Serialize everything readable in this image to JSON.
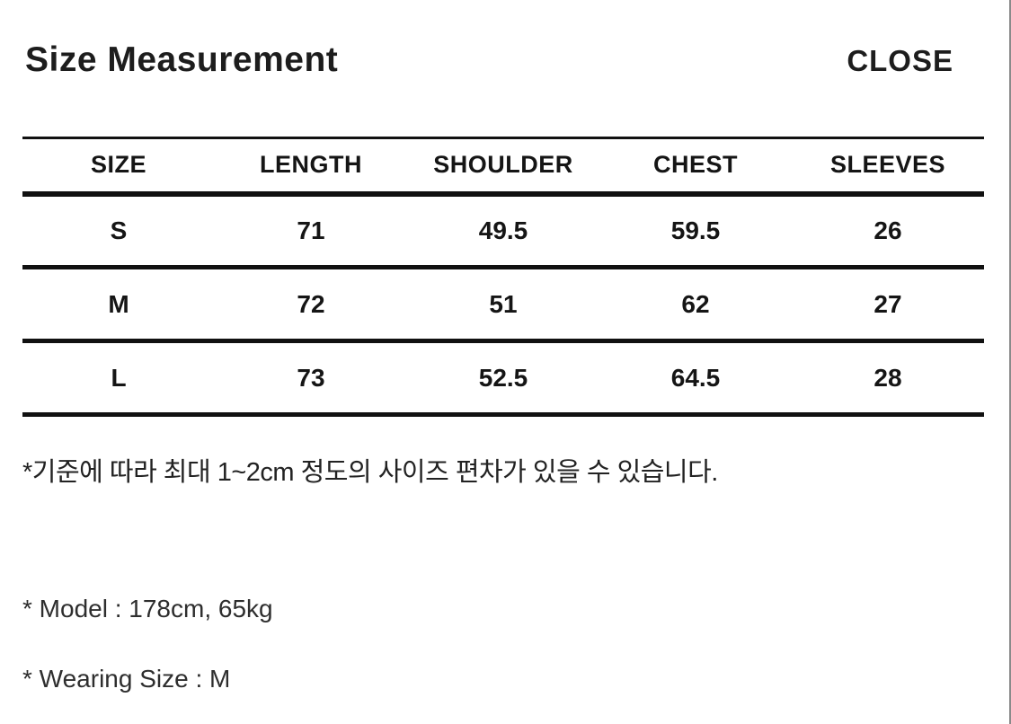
{
  "header": {
    "title": "Size Measurement",
    "close_label": "CLOSE"
  },
  "table": {
    "columns": [
      "SIZE",
      "LENGTH",
      "SHOULDER",
      "CHEST",
      "SLEEVES"
    ],
    "rows": [
      [
        "S",
        "71",
        "49.5",
        "59.5",
        "26"
      ],
      [
        "M",
        "72",
        "51",
        "62",
        "27"
      ],
      [
        "L",
        "73",
        "52.5",
        "64.5",
        "28"
      ]
    ]
  },
  "notes": {
    "tolerance_kr": "*기준에 따라 최대 1~2cm 정도의 사이즈 편차가 있을 수 있습니다.",
    "model": "* Model : 178cm, 65kg",
    "wearing_size": "* Wearing Size : M"
  },
  "colors": {
    "text": "#1c1c1c",
    "table_rule": "#111111",
    "frame_right_border": "#8a8a8a",
    "background": "#ffffff"
  }
}
